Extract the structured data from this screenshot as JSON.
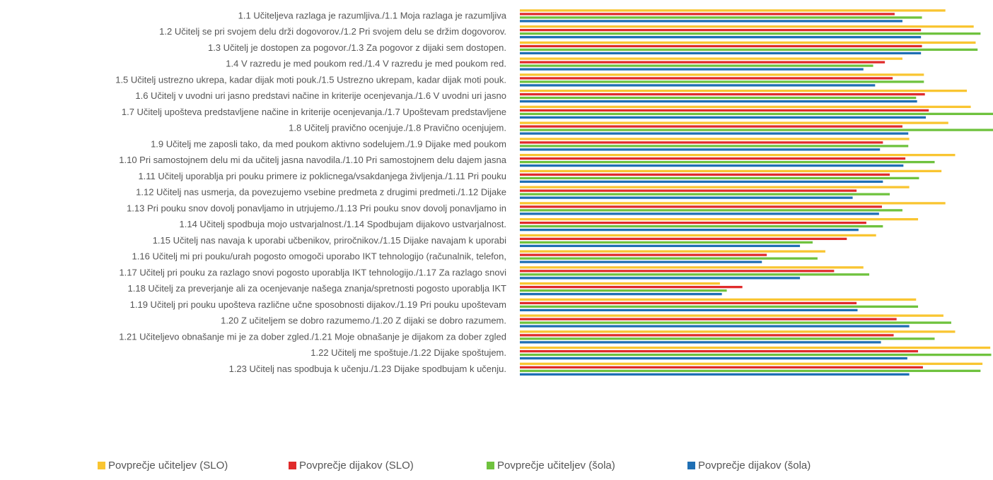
{
  "chart_data": {
    "type": "bar",
    "orientation": "horizontal",
    "title": "",
    "xlabel": "",
    "ylabel": "",
    "axis_labels_visible": false,
    "grid": false,
    "legend_position": "bottom",
    "xlim": [
      0,
      5
    ],
    "categories": [
      "1.1 Učiteljeva razlaga je razumljiva./1.1 Moja razlaga je razumljiva",
      "1.2 Učitelj se pri svojem delu drži dogovorov./1.2 Pri svojem delu se držim dogovorov.",
      "1.3 Učitelj je dostopen za pogovor./1.3 Za pogovor z dijaki sem dostopen.",
      "1.4 V razredu je med poukom red./1.4 V razredu je med poukom red.",
      "1.5 Učitelj ustrezno ukrepa, kadar dijak moti pouk./1.5 Ustrezno ukrepam, kadar dijak moti pouk.",
      "1.6 Učitelj v uvodni uri jasno predstavi načine in kriterije ocenjevanja./1.6 V uvodni uri jasno",
      "1.7 Učitelj upošteva predstavljene načine in kriterije ocenjevanja./1.7 Upoštevam predstavljene",
      "1.8 Učitelj pravično ocenjuje./1.8 Pravično ocenjujem.",
      "1.9 Učitelj me zaposli tako, da med poukom aktivno sodelujem./1.9 Dijake med poukom",
      "1.10 Pri samostojnem delu mi da učitelj jasna navodila./1.10 Pri samostojnem delu dajem jasna",
      "1.11 Učitelj uporablja pri pouku primere iz poklicnega/vsakdanjega življenja./1.11 Pri pouku",
      "1.12 Učitelj nas usmerja, da povezujemo vsebine predmeta z drugimi predmeti./1.12 Dijake",
      "1.13 Pri pouku snov dovolj ponavljamo in utrjujemo./1.13 Pri pouku snov dovolj ponavljamo in",
      "1.14 Učitelj spodbuja mojo ustvarjalnost./1.14 Spodbujam dijakovo ustvarjalnost.",
      "1.15 Učitelj nas navaja k uporabi učbenikov, priročnikov./1.15 Dijake navajam k uporabi",
      "1.16 Učitelj mi pri pouku/urah pogosto omogoči uporabo IKT tehnologijo (računalnik, telefon,",
      "1.17 Učitelj pri pouku za razlago snovi pogosto uporablja IKT tehnologijo./1.17 Za razlago snovi",
      "1.18 Učitelj za preverjanje ali za ocenjevanje našega znanja/spretnosti pogosto uporablja IKT",
      "1.19 Učitelj pri pouku upošteva različne učne sposobnosti dijakov./1.19 Pri pouku upoštevam",
      "1.20 Z učiteljem se dobro razumemo./1.20 Z dijaki se dobro razumem.",
      "1.21 Učiteljevo obnašanje mi je za dober zgled./1.21 Moje obnašanje je dijakom za dober zgled",
      "1.22 Učitelj me spoštuje./1.22 Dijake spoštujem.",
      "1.23 Učitelj nas spodbuja k učenju./1.23 Dijake spodbujam k učenju."
    ],
    "series": [
      {
        "name": "Povprečje učiteljev (SLO)",
        "color": "#F9C531",
        "values": [
          4.36,
          4.65,
          4.67,
          3.92,
          4.14,
          4.58,
          4.62,
          4.39,
          3.99,
          4.46,
          4.32,
          3.99,
          4.36,
          4.08,
          3.65,
          3.13,
          3.52,
          2.05,
          4.06,
          4.34,
          4.46,
          4.82,
          4.74
        ]
      },
      {
        "name": "Povprečje dijakov (SLO)",
        "color": "#E02B2B",
        "values": [
          3.84,
          4.11,
          4.12,
          3.74,
          3.82,
          4.15,
          4.19,
          3.92,
          3.72,
          3.95,
          3.79,
          3.45,
          3.71,
          3.55,
          3.35,
          2.53,
          3.22,
          2.28,
          3.45,
          3.86,
          3.83,
          4.08,
          4.13
        ]
      },
      {
        "name": "Povprečje učiteljev (šola)",
        "color": "#6FC23E",
        "values": [
          4.12,
          4.72,
          4.69,
          3.62,
          4.14,
          4.06,
          4.85,
          4.85,
          3.98,
          4.25,
          4.09,
          3.79,
          3.92,
          3.72,
          3.0,
          3.05,
          3.58,
          2.12,
          4.08,
          4.42,
          4.25,
          4.83,
          4.72
        ]
      },
      {
        "name": "Povprečje dijakov (šola)",
        "color": "#1F6FB4",
        "values": [
          3.92,
          4.11,
          4.11,
          3.52,
          3.64,
          4.07,
          4.16,
          3.98,
          3.69,
          3.93,
          3.72,
          3.41,
          3.68,
          3.47,
          2.87,
          2.48,
          2.87,
          2.07,
          3.46,
          3.99,
          3.7,
          3.97,
          3.99
        ]
      }
    ]
  }
}
